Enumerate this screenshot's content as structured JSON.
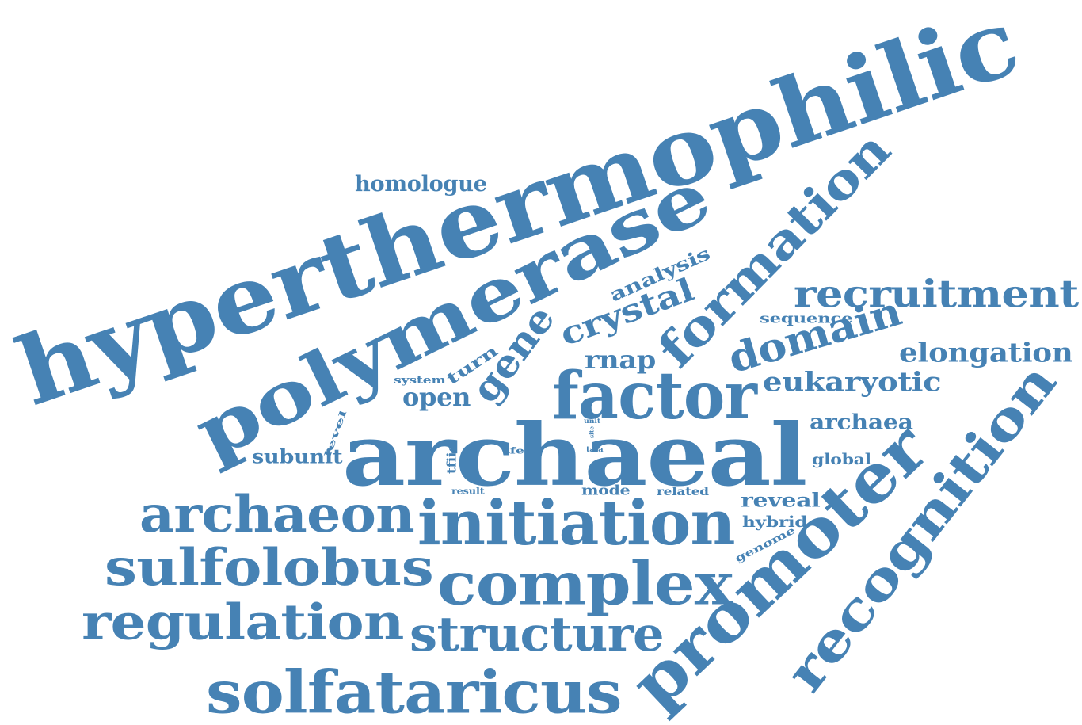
{
  "color": "#4682b4",
  "words": [
    "hyperthermophilic",
    "polymerase",
    "archaeal",
    "factor",
    "formation",
    "promoter",
    "recognition",
    "initiation",
    "complex",
    "archaeon",
    "sulfolobus",
    "regulation",
    "structure",
    "solfataricus",
    "recruitment",
    "domain",
    "crystal",
    "gene",
    "elongation",
    "eukaryotic",
    "homologue",
    "analysis",
    "rnap",
    "open",
    "archaea",
    "subunit",
    "reveal",
    "hybrid",
    "global",
    "sequence",
    "turn",
    "system",
    "mode",
    "related",
    "genome",
    "level",
    "tfiie",
    "tfeα",
    "tata",
    "unit",
    "site",
    "result"
  ]
}
